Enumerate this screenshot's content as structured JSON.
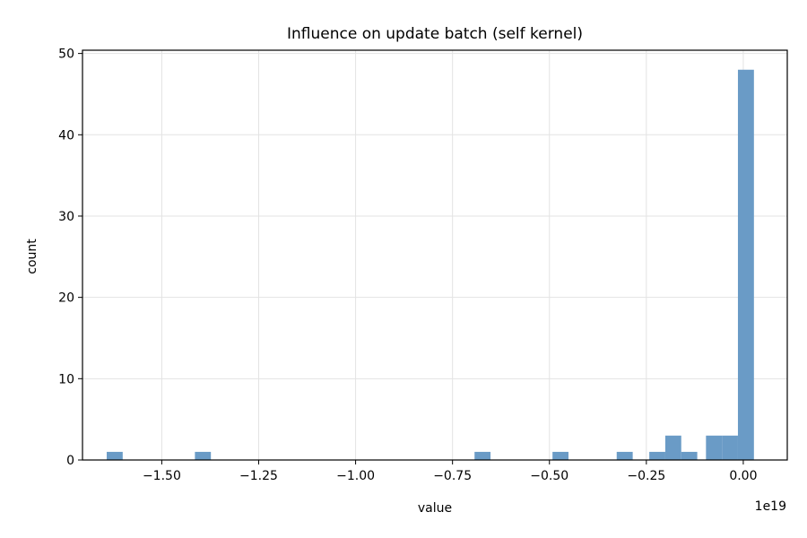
{
  "chart_data": {
    "type": "bar",
    "title": "Influence on update batch (self kernel)",
    "xlabel": "value",
    "ylabel": "count",
    "x_offset_label": "1e19",
    "x_scale_note": "x values are in units of 1e19",
    "xlim": [
      -1.7045,
      0.1135
    ],
    "ylim": [
      0,
      50.4
    ],
    "x_ticks": [
      -1.5,
      -1.25,
      -1.0,
      -0.75,
      -0.5,
      -0.25,
      0.0
    ],
    "x_tick_labels": [
      "−1.50",
      "−1.25",
      "−1.00",
      "−0.75",
      "−0.50",
      "−0.25",
      "0.00"
    ],
    "y_ticks": [
      0,
      10,
      20,
      30,
      40,
      50
    ],
    "y_tick_labels": [
      "0",
      "10",
      "20",
      "30",
      "40",
      "50"
    ],
    "grid": true,
    "bar_color": "#6a9bc6",
    "bins": [
      {
        "x0": -1.642,
        "x1": -1.6008,
        "count": 1
      },
      {
        "x0": -1.4145,
        "x1": -1.3733,
        "count": 1
      },
      {
        "x0": -0.6932,
        "x1": -0.652,
        "count": 1
      },
      {
        "x0": -0.4921,
        "x1": -0.4509,
        "count": 1
      },
      {
        "x0": -0.3265,
        "x1": -0.2852,
        "count": 1
      },
      {
        "x0": -0.2424,
        "x1": -0.2012,
        "count": 1
      },
      {
        "x0": -0.2012,
        "x1": -0.16,
        "count": 3
      },
      {
        "x0": -0.16,
        "x1": -0.1187,
        "count": 1
      },
      {
        "x0": -0.0962,
        "x1": -0.055,
        "count": 3
      },
      {
        "x0": -0.055,
        "x1": -0.0138,
        "count": 3
      },
      {
        "x0": -0.0138,
        "x1": 0.0275,
        "count": 48
      }
    ]
  }
}
